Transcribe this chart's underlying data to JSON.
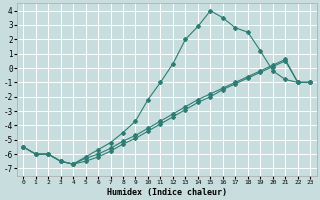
{
  "xlabel": "Humidex (Indice chaleur)",
  "background_color": "#c8dede",
  "grid_color": "#ffffff",
  "line_color": "#2d7d74",
  "xlim": [
    -0.5,
    23.5
  ],
  "ylim": [
    -7.5,
    4.5
  ],
  "xticks": [
    0,
    1,
    2,
    3,
    4,
    5,
    6,
    7,
    8,
    9,
    10,
    11,
    12,
    13,
    14,
    15,
    16,
    17,
    18,
    19,
    20,
    21,
    22,
    23
  ],
  "yticks": [
    -7,
    -6,
    -5,
    -4,
    -3,
    -2,
    -1,
    0,
    1,
    2,
    3,
    4
  ],
  "line1_x": [
    0,
    1,
    2,
    3,
    4,
    5,
    6,
    7,
    8,
    9,
    10,
    11,
    12,
    13,
    14,
    15,
    16,
    17,
    18,
    19,
    20,
    21,
    22,
    23
  ],
  "line1_y": [
    -5.5,
    -6.0,
    -6.0,
    -6.5,
    -6.7,
    -6.5,
    -6.2,
    -5.8,
    -5.3,
    -4.9,
    -4.4,
    -3.9,
    -3.4,
    -2.9,
    -2.4,
    -2.0,
    -1.5,
    -1.1,
    -0.7,
    -0.3,
    0.1,
    0.5,
    -1.0,
    -1.0
  ],
  "line2_x": [
    0,
    1,
    2,
    3,
    4,
    5,
    6,
    7,
    8,
    9,
    10,
    11,
    12,
    13,
    14,
    15,
    16,
    17,
    18,
    19,
    20,
    21,
    22,
    23
  ],
  "line2_y": [
    -5.5,
    -6.0,
    -6.0,
    -6.5,
    -6.7,
    -6.2,
    -5.7,
    -5.2,
    -4.5,
    -3.7,
    -2.2,
    -1.0,
    0.3,
    2.0,
    2.9,
    4.0,
    3.5,
    2.8,
    2.5,
    1.2,
    -0.2,
    -0.8,
    -1.0,
    -1.0
  ],
  "line3_x": [
    0,
    1,
    2,
    3,
    4,
    5,
    6,
    7,
    8,
    9,
    10,
    11,
    12,
    13,
    14,
    15,
    16,
    17,
    18,
    19,
    20,
    21,
    22,
    23
  ],
  "line3_y": [
    -5.5,
    -6.0,
    -6.0,
    -6.5,
    -6.7,
    -6.3,
    -6.0,
    -5.6,
    -5.1,
    -4.7,
    -4.2,
    -3.7,
    -3.2,
    -2.7,
    -2.2,
    -1.8,
    -1.4,
    -1.0,
    -0.6,
    -0.2,
    0.2,
    0.6,
    -1.0,
    -1.0
  ]
}
